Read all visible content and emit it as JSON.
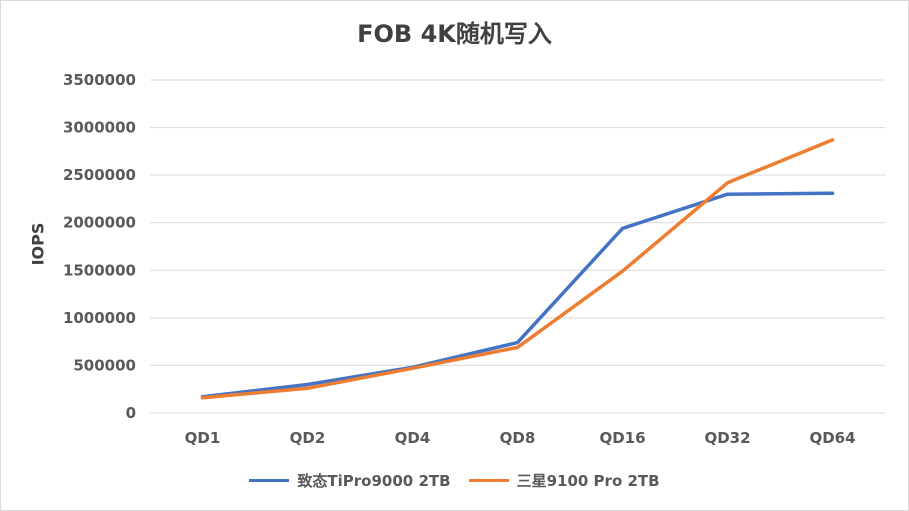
{
  "chart_data": {
    "type": "line",
    "title": "FOB 4K随机写入",
    "xlabel": "",
    "ylabel": "IOPS",
    "categories": [
      "QD1",
      "QD2",
      "QD4",
      "QD8",
      "QD16",
      "QD32",
      "QD64"
    ],
    "ylim": [
      0,
      3500000
    ],
    "yticks": [
      "0",
      "500000",
      "1000000",
      "1500000",
      "2000000",
      "2500000",
      "3000000",
      "3500000"
    ],
    "grid": true,
    "legend_position": "bottom",
    "series": [
      {
        "name": "致态TiPro9000 2TB",
        "color": "#4472C4",
        "values": [
          170000,
          300000,
          480000,
          740000,
          1940000,
          2300000,
          2310000
        ]
      },
      {
        "name": "三星9100 Pro 2TB",
        "color": "#ED7D31",
        "values": [
          160000,
          260000,
          470000,
          690000,
          1490000,
          2420000,
          2870000
        ]
      }
    ]
  }
}
